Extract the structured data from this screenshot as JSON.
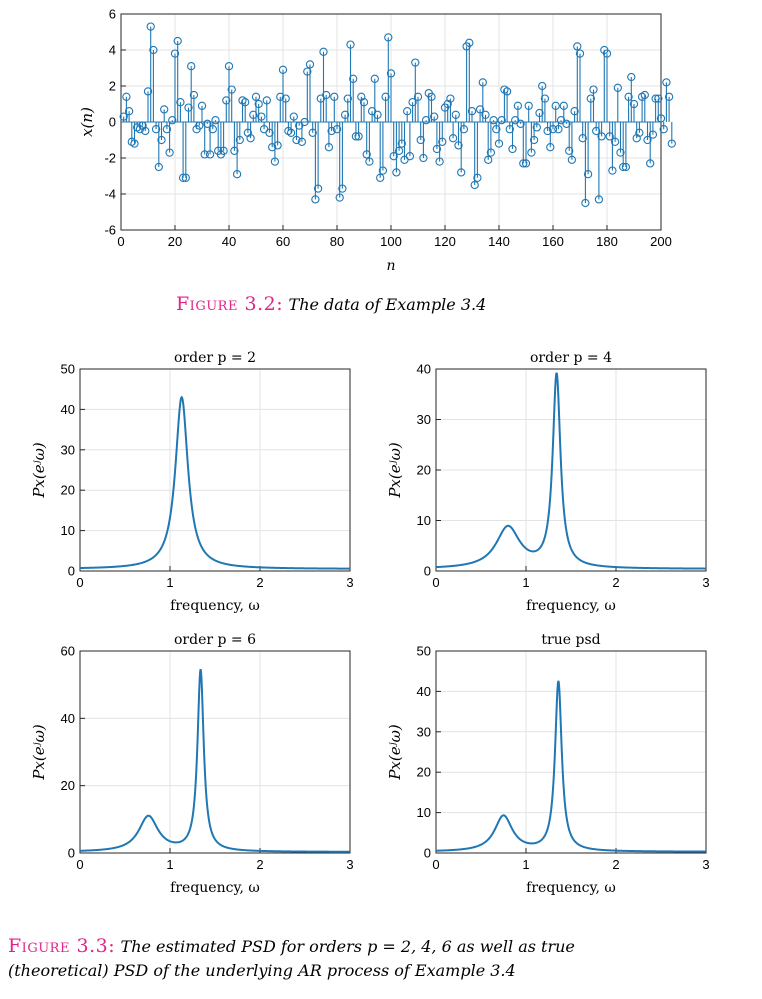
{
  "chart_data": [
    {
      "type": "stem",
      "ylabel": "x(n)",
      "xlabel": "n",
      "xlim": [
        0,
        200
      ],
      "ylim": [
        -6,
        6
      ],
      "x_ticks": [
        "0",
        "20",
        "40",
        "60",
        "80",
        "100",
        "120",
        "140",
        "160",
        "180",
        "200"
      ],
      "y_ticks": [
        "6",
        "4",
        "2",
        "0",
        "-2",
        "-4",
        "-6"
      ],
      "grid": true,
      "color": "#1f77b4",
      "values": [
        0.3,
        1.4,
        0.6,
        -1.1,
        -1.2,
        -0.3,
        -0.4,
        -0.2,
        -0.5,
        1.7,
        5.3,
        4.0,
        -0.4,
        -2.5,
        -1.0,
        0.7,
        -0.4,
        -1.7,
        0.1,
        3.8,
        4.5,
        1.1,
        -3.1,
        -3.1,
        0.8,
        3.1,
        1.5,
        -0.4,
        -0.2,
        0.9,
        -1.8,
        -0.1,
        -1.8,
        -0.4,
        0.1,
        -1.6,
        -1.8,
        -1.6,
        1.2,
        3.1,
        1.8,
        -1.6,
        -2.9,
        -1.0,
        1.2,
        1.1,
        -0.6,
        -0.9,
        0.4,
        1.4,
        1.0,
        0.3,
        -0.4,
        1.2,
        -0.6,
        -1.4,
        -2.2,
        -1.3,
        1.4,
        2.9,
        1.3,
        -0.5,
        -0.6,
        0.3,
        -1.0,
        -0.2,
        -1.1,
        0.0,
        2.8,
        3.2,
        -0.6,
        -4.3,
        -3.7,
        1.3,
        3.9,
        1.5,
        -1.4,
        -0.5,
        1.4,
        -0.4,
        -4.2,
        -3.7,
        0.4,
        1.3,
        4.3,
        2.4,
        -0.8,
        -0.8,
        1.4,
        1.1,
        -1.8,
        -2.2,
        0.6,
        2.4,
        0.4,
        -3.1,
        -2.7,
        1.4,
        4.7,
        2.7,
        -1.9,
        -2.8,
        -1.6,
        -1.2,
        -2.1,
        0.6,
        -1.9,
        1.1,
        3.3,
        1.4,
        -1.0,
        -2.0,
        0.1,
        1.6,
        1.4,
        0.3,
        -1.5,
        -2.2,
        -1.1,
        0.8,
        1.0,
        1.3,
        -0.9,
        0.4,
        -1.3,
        -2.8,
        -0.4,
        4.2,
        4.4,
        0.6,
        -3.5,
        -3.1,
        0.7,
        2.2,
        0.4,
        -2.1,
        -1.7,
        0.1,
        -0.4,
        -1.2,
        0.1,
        1.8,
        1.7,
        -0.4,
        -1.5,
        0.1,
        0.9,
        -0.1,
        -2.3,
        -2.3,
        0.9,
        -1.7,
        -1.0,
        -0.3,
        0.5,
        2.0,
        1.3,
        -0.5,
        -1.4,
        -0.4,
        0.9,
        -0.4,
        0.1,
        0.9,
        -0.1,
        -1.6,
        -2.1,
        0.6,
        4.2,
        3.8,
        -0.9,
        -4.5,
        -2.9,
        1.3,
        1.8,
        -0.5,
        -4.3,
        -0.8,
        4.0,
        3.8,
        -0.8,
        -2.7,
        -1.1,
        1.9,
        -1.7,
        -2.5,
        -2.5,
        1.4,
        2.5,
        1.0,
        -0.9,
        -0.6,
        1.4,
        1.5,
        -1.0,
        -2.3,
        -0.7,
        1.3,
        1.3,
        0.2,
        -0.4,
        2.2,
        1.4,
        -1.2
      ]
    },
    {
      "type": "line",
      "title": "order p = 2",
      "xlabel": "frequency, ω",
      "ylabel": "Px(eʲω)",
      "xlim": [
        0,
        3
      ],
      "ylim": [
        0,
        50
      ],
      "x_ticks": [
        "0",
        "1",
        "2",
        "3"
      ],
      "y_ticks": [
        "0",
        "10",
        "20",
        "30",
        "40",
        "50"
      ],
      "grid": true,
      "peaks": [
        {
          "center": 1.13,
          "height": 42.5,
          "width": 0.085
        }
      ],
      "baseline": 0.5
    },
    {
      "type": "line",
      "title": "order p = 4",
      "xlabel": "frequency, ω",
      "ylabel": "Px(eʲω)",
      "xlim": [
        0,
        3
      ],
      "ylim": [
        0,
        40
      ],
      "x_ticks": [
        "0",
        "1",
        "2",
        "3"
      ],
      "y_ticks": [
        "0",
        "10",
        "20",
        "30",
        "40"
      ],
      "grid": true,
      "peaks": [
        {
          "center": 0.8,
          "height": 8.2,
          "width": 0.16
        },
        {
          "center": 1.34,
          "height": 38.2,
          "width": 0.052
        }
      ],
      "baseline": 0.4
    },
    {
      "type": "line",
      "title": "order p = 6",
      "xlabel": "frequency, ω",
      "ylabel": "Px(eʲω)",
      "xlim": [
        0,
        3
      ],
      "ylim": [
        0,
        60
      ],
      "x_ticks": [
        "0",
        "1",
        "2",
        "3"
      ],
      "y_ticks": [
        "0",
        "20",
        "40",
        "60"
      ],
      "grid": true,
      "peaks": [
        {
          "center": 0.76,
          "height": 10.5,
          "width": 0.13
        },
        {
          "center": 1.34,
          "height": 53.8,
          "width": 0.042
        }
      ],
      "baseline": 0.3
    },
    {
      "type": "line",
      "title": "true psd",
      "xlabel": "frequency, ω",
      "ylabel": "Px(eʲω)",
      "xlim": [
        0,
        3
      ],
      "ylim": [
        0,
        50
      ],
      "x_ticks": [
        "0",
        "1",
        "2",
        "3"
      ],
      "y_ticks": [
        "0",
        "10",
        "20",
        "30",
        "40",
        "50"
      ],
      "grid": true,
      "peaks": [
        {
          "center": 0.75,
          "height": 8.8,
          "width": 0.12
        },
        {
          "center": 1.36,
          "height": 42.0,
          "width": 0.045
        }
      ],
      "baseline": 0.3
    }
  ],
  "captions": {
    "fig32_head": "Figure 3.2:",
    "fig32_text": "The data of Example 3.4",
    "fig33_head": "Figure 3.3:",
    "fig33_text_line1": "The estimated PSD for orders p = 2, 4, 6 as well as true",
    "fig33_text_line2": "(theoretical) PSD of the underlying AR process of Example 3.4"
  }
}
